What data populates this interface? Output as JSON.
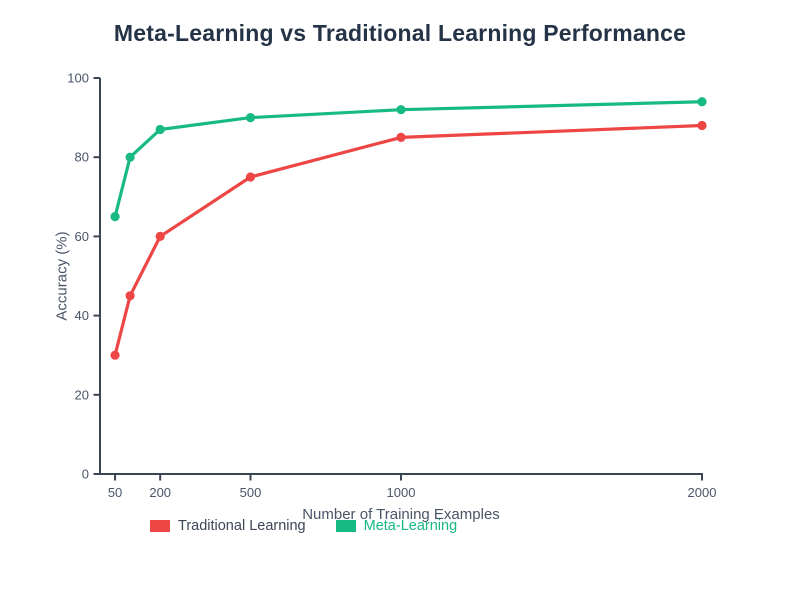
{
  "figure": {
    "title": "Meta-Learning vs Traditional Learning Performance"
  },
  "chart_data": {
    "type": "line",
    "title": "Meta-Learning vs Traditional Learning Performance",
    "xlabel": "Number of Training Examples",
    "ylabel": "Accuracy (%)",
    "x": [
      50,
      100,
      200,
      500,
      1000,
      2000
    ],
    "series": [
      {
        "name": "Traditional Learning",
        "values": [
          30,
          45,
          60,
          75,
          85,
          88
        ],
        "color": "#EE4545",
        "label_color": "#3D4657"
      },
      {
        "name": "Meta-Learning",
        "values": [
          65,
          80,
          87,
          90,
          92,
          94
        ],
        "color": "#18BA84",
        "label_color": "#18BA84"
      }
    ],
    "xlim": [
      0,
      2000
    ],
    "ylim": [
      0,
      100
    ],
    "x_ticks": [
      50,
      200,
      500,
      1000,
      2000
    ],
    "y_ticks": [
      0,
      20,
      40,
      60,
      80,
      100
    ],
    "grid": false,
    "legend_position": "bottom",
    "style": {
      "axis_color": "#3A4556",
      "tick_label_color": "#4A5568",
      "title_color": "#253347",
      "background": "#FFFFFF",
      "line_width": 3.2,
      "marker_radius": 4.6
    }
  }
}
